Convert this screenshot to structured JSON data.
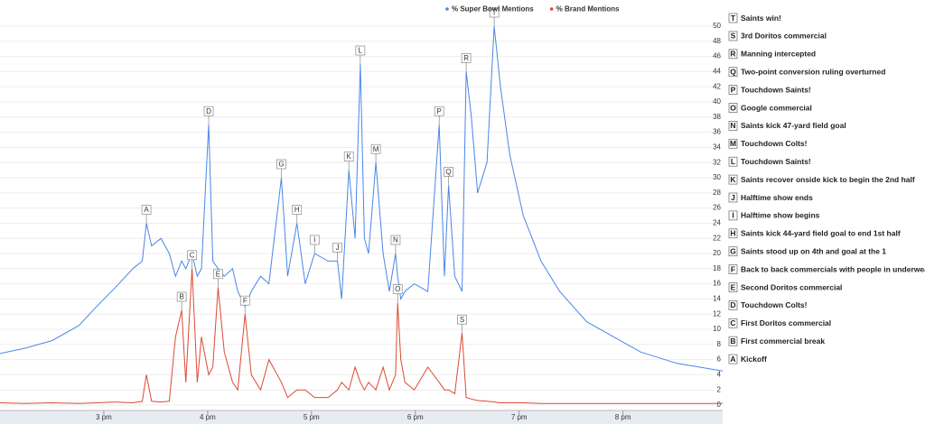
{
  "chart_data": {
    "type": "line",
    "x": [
      2.0,
      2.24,
      2.5,
      2.76,
      2.93,
      3.11,
      3.28,
      3.37,
      3.41,
      3.46,
      3.55,
      3.63,
      3.69,
      3.75,
      3.79,
      3.85,
      3.9,
      3.94,
      4.01,
      4.05,
      4.1,
      4.16,
      4.24,
      4.29,
      4.36,
      4.42,
      4.51,
      4.59,
      4.71,
      4.77,
      4.86,
      4.94,
      5.03,
      5.16,
      5.25,
      5.29,
      5.36,
      5.42,
      5.47,
      5.51,
      5.55,
      5.62,
      5.69,
      5.75,
      5.81,
      5.83,
      5.86,
      5.9,
      5.99,
      6.12,
      6.23,
      6.28,
      6.32,
      6.38,
      6.45,
      6.49,
      6.54,
      6.6,
      6.69,
      6.76,
      6.82,
      6.91,
      7.04,
      7.21,
      7.39,
      7.65,
      7.91,
      8.17,
      8.52,
      8.96
    ],
    "xlim": [
      2.0,
      8.96
    ],
    "xticks": [
      {
        "value": 3,
        "label": "3 pm"
      },
      {
        "value": 4,
        "label": "4 pm"
      },
      {
        "value": 5,
        "label": "5 pm"
      },
      {
        "value": 6,
        "label": "6 pm"
      },
      {
        "value": 7,
        "label": "7 pm"
      },
      {
        "value": 8,
        "label": "8 pm"
      }
    ],
    "ylim": [
      0,
      50
    ],
    "yticks": [
      0,
      2,
      4,
      6,
      8,
      10,
      12,
      14,
      16,
      18,
      20,
      22,
      24,
      26,
      28,
      30,
      32,
      34,
      36,
      38,
      40,
      42,
      44,
      46,
      48,
      50
    ],
    "grid": true,
    "series": [
      {
        "name": "% Super Bowl Mentions",
        "color": "#4a86e8",
        "values": [
          6.8,
          7.5,
          8.5,
          10.5,
          13,
          15.5,
          18,
          19,
          24,
          21,
          22,
          20,
          17,
          19,
          18,
          20,
          17,
          18,
          37,
          19,
          18,
          17,
          18,
          15,
          13,
          15,
          17,
          16,
          30,
          17,
          24,
          16,
          20,
          19,
          19,
          14,
          31,
          22,
          45,
          22,
          20,
          32,
          20,
          15,
          20,
          17,
          14,
          15,
          16,
          15,
          37,
          17,
          29,
          17,
          15,
          44,
          38,
          28,
          32,
          50,
          42,
          33,
          25,
          19,
          15,
          11,
          9,
          7,
          5.5,
          4.5
        ],
        "flags": [
          {
            "letter": "A",
            "x": 3.41
          },
          {
            "letter": "D",
            "x": 4.01
          },
          {
            "letter": "G",
            "x": 4.71
          },
          {
            "letter": "H",
            "x": 4.86
          },
          {
            "letter": "I",
            "x": 5.03
          },
          {
            "letter": "J",
            "x": 5.25
          },
          {
            "letter": "K",
            "x": 5.36
          },
          {
            "letter": "L",
            "x": 5.47
          },
          {
            "letter": "M",
            "x": 5.62
          },
          {
            "letter": "N",
            "x": 5.81
          },
          {
            "letter": "P",
            "x": 6.23
          },
          {
            "letter": "Q",
            "x": 6.32
          },
          {
            "letter": "R",
            "x": 6.49
          },
          {
            "letter": "T",
            "x": 6.76
          }
        ]
      },
      {
        "name": "% Brand Mentions",
        "color": "#dc4a32",
        "values": [
          0.3,
          0.2,
          0.3,
          0.2,
          0.3,
          0.4,
          0.3,
          0.5,
          4,
          0.5,
          0.4,
          0.5,
          9,
          12.5,
          3,
          18,
          3,
          9,
          4,
          5,
          15.5,
          7,
          3,
          2,
          12,
          4,
          2,
          6,
          3,
          1,
          2,
          2,
          1,
          1,
          2,
          3,
          2,
          5,
          3,
          2,
          3,
          2,
          5,
          2,
          4,
          13.5,
          6,
          3,
          2,
          5,
          3,
          2,
          2,
          1.5,
          9.5,
          1,
          0.8,
          0.6,
          0.5,
          0.4,
          0.3,
          0.3,
          0.3,
          0.2,
          0.2,
          0.2,
          0.2,
          0.2,
          0.2,
          0.2
        ],
        "flags": [
          {
            "letter": "B",
            "x": 3.75
          },
          {
            "letter": "C",
            "x": 3.85
          },
          {
            "letter": "E",
            "x": 4.1
          },
          {
            "letter": "F",
            "x": 4.36
          },
          {
            "letter": "O",
            "x": 5.83
          },
          {
            "letter": "S",
            "x": 6.45
          }
        ]
      }
    ],
    "events": [
      {
        "letter": "T",
        "text": "Saints win!"
      },
      {
        "letter": "S",
        "text": "3rd Doritos commercial"
      },
      {
        "letter": "R",
        "text": "Manning intercepted"
      },
      {
        "letter": "Q",
        "text": "Two-point conversion ruling overturned"
      },
      {
        "letter": "P",
        "text": "Touchdown Saints!"
      },
      {
        "letter": "O",
        "text": "Google commercial"
      },
      {
        "letter": "N",
        "text": "Saints kick 47-yard field goal"
      },
      {
        "letter": "M",
        "text": "Touchdown Colts!"
      },
      {
        "letter": "L",
        "text": "Touchdown Saints!"
      },
      {
        "letter": "K",
        "text": "Saints recover onside kick to begin the 2nd half"
      },
      {
        "letter": "J",
        "text": "Halftime show ends"
      },
      {
        "letter": "I",
        "text": "Halftime show begins"
      },
      {
        "letter": "H",
        "text": "Saints kick 44-yard field goal to end 1st half"
      },
      {
        "letter": "G",
        "text": "Saints stood up on 4th and goal at the 1"
      },
      {
        "letter": "F",
        "text": "Back to back commercials with people in underwear"
      },
      {
        "letter": "E",
        "text": "Second Doritos commercial"
      },
      {
        "letter": "D",
        "text": "Touchdown Colts!"
      },
      {
        "letter": "C",
        "text": "First Doritos commercial"
      },
      {
        "letter": "B",
        "text": "First commercial break"
      },
      {
        "letter": "A",
        "text": "Kickoff"
      }
    ]
  }
}
